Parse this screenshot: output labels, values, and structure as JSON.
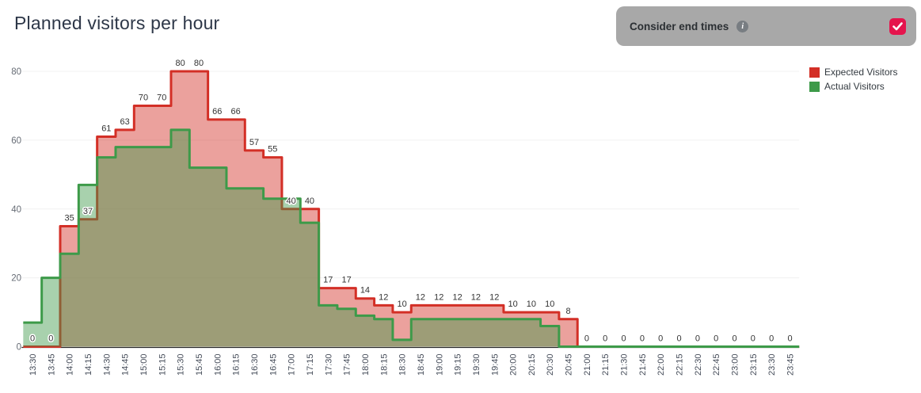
{
  "title": "Planned visitors per hour",
  "toggle": {
    "label": "Consider end times",
    "info_icon_glyph": "i",
    "checked": true,
    "checkbox_color": "#e5154d",
    "bar_color": "#a8a8a8"
  },
  "legend": [
    {
      "label": "Expected Visitors",
      "color": "#d32f26"
    },
    {
      "label": "Actual Visitors",
      "color": "#3d9a49"
    }
  ],
  "chart_data": {
    "type": "area",
    "step": true,
    "title": "Planned visitors per hour",
    "xlabel": "",
    "ylabel": "",
    "ylim": [
      0,
      80
    ],
    "yticks": [
      0,
      20,
      40,
      60,
      80
    ],
    "grid": true,
    "legend_position": "top-right",
    "categories": [
      "13:30",
      "13:45",
      "14:00",
      "14:15",
      "14:30",
      "14:45",
      "15:00",
      "15:15",
      "15:30",
      "15:45",
      "16:00",
      "16:15",
      "16:30",
      "16:45",
      "17:00",
      "17:15",
      "17:30",
      "17:45",
      "18:00",
      "18:15",
      "18:30",
      "18:45",
      "19:00",
      "19:15",
      "19:30",
      "19:45",
      "20:00",
      "20:15",
      "20:30",
      "20:45",
      "21:00",
      "21:15",
      "21:30",
      "21:45",
      "22:00",
      "22:15",
      "22:30",
      "22:45",
      "23:00",
      "23:15",
      "23:30",
      "23:45"
    ],
    "series": [
      {
        "name": "Expected Visitors",
        "color": "#d32f26",
        "fill": "rgba(211,47,38,0.45)",
        "labels_shown": true,
        "values": [
          0,
          0,
          35,
          37,
          61,
          63,
          70,
          70,
          80,
          80,
          66,
          66,
          57,
          55,
          40,
          40,
          17,
          17,
          14,
          12,
          10,
          12,
          12,
          12,
          12,
          12,
          10,
          10,
          10,
          8,
          0,
          0,
          0,
          0,
          0,
          0,
          0,
          0,
          0,
          0,
          0,
          0
        ]
      },
      {
        "name": "Actual Visitors",
        "color": "#3d9a49",
        "fill": "rgba(61,154,73,0.45)",
        "labels_shown": false,
        "values": [
          7,
          20,
          27,
          47,
          55,
          58,
          58,
          58,
          63,
          52,
          52,
          46,
          46,
          43,
          43,
          36,
          12,
          11,
          9,
          8,
          2,
          8,
          8,
          8,
          8,
          8,
          8,
          8,
          6,
          0,
          0,
          0,
          0,
          0,
          0,
          0,
          0,
          0,
          0,
          0,
          0,
          0
        ]
      }
    ]
  }
}
